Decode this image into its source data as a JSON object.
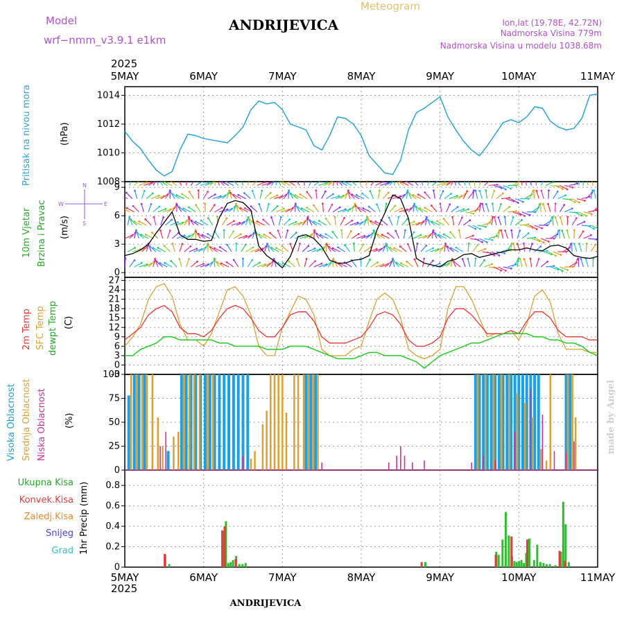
{
  "header": {
    "model_label": "Model",
    "model_name": "wrf−nmm_v3.9.1  e1km",
    "title": "ANDRIJEVICA",
    "meteogram": "Meteogram",
    "lonlat": "lon,lat (19.78E, 42.72N)",
    "elevation": "Nadmorska Visina 779m",
    "model_elevation": "Nadmorska Visina u modelu 1038.68m",
    "year_top": "2025",
    "year_bottom": "2025",
    "footer": "ANDRIJEVICA",
    "credit": "made by Angel"
  },
  "colors": {
    "pressure": "#2aa2de",
    "temp2m": "#ee3333",
    "sfc": "#dda030",
    "dew": "#22cc22",
    "high_cloud": "#18a0e8",
    "mid_cloud": "#dda030",
    "low_cloud": "#cc3399",
    "total_rain": "#2ebd2e",
    "convective": "#e83a3a",
    "freezing": "#ee8822",
    "snow": "#4444dd",
    "hail": "#33c0c0",
    "wind_legend": "#9955dd"
  },
  "chart_data": [
    {
      "type": "line",
      "panel": "pressure",
      "ylabel": "Pritisak na nivou mora",
      "unit": "(hPa)",
      "x_categories": [
        "5MAY",
        "6MAY",
        "7MAY",
        "8MAY",
        "9MAY",
        "10MAY",
        "11MAY"
      ],
      "yticks": [
        1008,
        1010,
        1012,
        1014
      ],
      "ylim": [
        1008,
        1014.6
      ],
      "grid": true,
      "x": [
        0,
        0.1,
        0.2,
        0.3,
        0.4,
        0.5,
        0.6,
        0.7,
        0.8,
        0.9,
        1.0,
        1.1,
        1.2,
        1.3,
        1.4,
        1.5,
        1.6,
        1.7,
        1.8,
        1.9,
        2.0,
        2.1,
        2.2,
        2.3,
        2.4,
        2.5,
        2.6,
        2.7,
        2.8,
        2.9,
        3.0,
        3.1,
        3.2,
        3.3,
        3.4,
        3.5,
        3.6,
        3.7,
        3.8,
        3.9,
        4.0,
        4.1,
        4.2,
        4.3,
        4.4,
        4.5,
        4.6,
        4.7,
        4.8,
        4.9,
        5.0,
        5.1,
        5.2,
        5.3,
        5.4,
        5.5,
        5.6,
        5.7,
        5.8,
        5.9,
        6.0
      ],
      "series": [
        {
          "values": [
            1011.5,
            1010.8,
            1010.3,
            1009.5,
            1008.8,
            1008.4,
            1008.7,
            1010.2,
            1011.3,
            1011.2,
            1011.0,
            1010.9,
            1010.8,
            1010.7,
            1011.2,
            1011.8,
            1013.0,
            1013.6,
            1013.4,
            1013.5,
            1013.0,
            1012.0,
            1011.8,
            1011.6,
            1010.5,
            1010.2,
            1011.2,
            1012.5,
            1012.4,
            1012.0,
            1011.2,
            1009.8,
            1009.2,
            1008.6,
            1008.5,
            1009.5,
            1011.6,
            1012.8,
            1013.1,
            1013.5,
            1013.9,
            1012.5,
            1011.6,
            1010.8,
            1010.2,
            1009.8,
            1010.5,
            1011.3,
            1012.1,
            1012.3,
            1012.1,
            1012.5,
            1013.2,
            1013.1,
            1012.2,
            1011.8,
            1011.6,
            1011.7,
            1012.4,
            1014.0,
            1014.1
          ]
        }
      ]
    },
    {
      "type": "line",
      "panel": "wind",
      "ylabel_1": "10m Vjetar",
      "ylabel_2": "Brzina i Pravac",
      "unit": "(m/s)",
      "direction_legend": [
        "N",
        "W",
        "E",
        "S"
      ],
      "yticks": [
        0,
        3,
        6,
        9
      ],
      "ylim": [
        -0.5,
        9.6
      ],
      "grid": true,
      "x": [
        0,
        0.1,
        0.2,
        0.3,
        0.4,
        0.5,
        0.6,
        0.7,
        0.8,
        0.9,
        1.0,
        1.1,
        1.2,
        1.3,
        1.4,
        1.5,
        1.6,
        1.7,
        1.8,
        1.9,
        2.0,
        2.1,
        2.2,
        2.3,
        2.4,
        2.5,
        2.6,
        2.7,
        2.8,
        2.9,
        3.0,
        3.1,
        3.2,
        3.3,
        3.4,
        3.5,
        3.6,
        3.7,
        3.8,
        3.9,
        4.0,
        4.1,
        4.2,
        4.3,
        4.4,
        4.5,
        4.6,
        4.7,
        4.8,
        4.9,
        5.0,
        5.1,
        5.2,
        5.3,
        5.4,
        5.5,
        5.6,
        5.7,
        5.8,
        5.9,
        6.0
      ],
      "series": [
        {
          "name": "speed",
          "values": [
            1.8,
            2.0,
            2.4,
            3.0,
            4.2,
            5.3,
            6.4,
            4.0,
            3.5,
            3.5,
            3.3,
            3.4,
            5.8,
            7.3,
            7.6,
            7.4,
            6.6,
            2.8,
            1.8,
            1.2,
            0.5,
            1.7,
            3.8,
            4.0,
            3.6,
            2.7,
            1.3,
            1.0,
            1.0,
            1.3,
            1.4,
            1.8,
            4.5,
            6.3,
            8.2,
            7.8,
            5.7,
            1.5,
            1.0,
            0.8,
            0.6,
            1.2,
            1.4,
            1.9,
            2.0,
            1.6,
            1.8,
            2.0,
            2.2,
            2.4,
            2.4,
            2.6,
            2.4,
            2.3,
            2.8,
            2.9,
            2.6,
            1.8,
            1.6,
            1.5,
            1.7
          ]
        }
      ]
    },
    {
      "type": "line",
      "panel": "temperature",
      "ylabels": [
        "2m Temp",
        "SFC Temp",
        "dewpt Temp"
      ],
      "unit": "(C)",
      "yticks": [
        -3,
        0,
        3,
        6,
        9,
        12,
        15,
        18,
        21,
        24,
        27
      ],
      "ylim": [
        -3,
        28
      ],
      "grid": true,
      "x": [
        0,
        0.1,
        0.2,
        0.3,
        0.4,
        0.5,
        0.6,
        0.7,
        0.8,
        0.9,
        1.0,
        1.1,
        1.2,
        1.3,
        1.4,
        1.5,
        1.6,
        1.7,
        1.8,
        1.9,
        2.0,
        2.1,
        2.2,
        2.3,
        2.4,
        2.5,
        2.6,
        2.7,
        2.8,
        2.9,
        3.0,
        3.1,
        3.2,
        3.3,
        3.4,
        3.5,
        3.6,
        3.7,
        3.8,
        3.9,
        4.0,
        4.1,
        4.2,
        4.3,
        4.4,
        4.5,
        4.6,
        4.7,
        4.8,
        4.9,
        5.0,
        5.1,
        5.2,
        5.3,
        5.4,
        5.5,
        5.6,
        5.7,
        5.8,
        5.9,
        6.0
      ],
      "series": [
        {
          "name": "2m Temp",
          "values": [
            8,
            10,
            12,
            16,
            18,
            19,
            17,
            12,
            10,
            10,
            9,
            11,
            15,
            18,
            19,
            18,
            15,
            11,
            9,
            9,
            12,
            16,
            17,
            17,
            14,
            9,
            7,
            7,
            7,
            8,
            9,
            12,
            16,
            17,
            16,
            13,
            8,
            6,
            6,
            7,
            9,
            15,
            18,
            18,
            16,
            13,
            10,
            10,
            10,
            11,
            10,
            14,
            17,
            17,
            15,
            11,
            9,
            9,
            9,
            8,
            8
          ]
        },
        {
          "name": "SFC Temp",
          "values": [
            6,
            9,
            13,
            21,
            25,
            26,
            22,
            13,
            8,
            8,
            6,
            10,
            17,
            24,
            25,
            22,
            16,
            6,
            3,
            3,
            12,
            17,
            22,
            21,
            16,
            5,
            3,
            3,
            3,
            5,
            6,
            14,
            21,
            23,
            21,
            15,
            5,
            3,
            2,
            3,
            5,
            18,
            25,
            25,
            21,
            15,
            9,
            10,
            10,
            11,
            8,
            13,
            22,
            24,
            20,
            10,
            5,
            5,
            5,
            4,
            4
          ]
        },
        {
          "name": "dewpt Temp",
          "values": [
            3,
            3,
            5,
            6,
            7,
            9,
            9,
            8,
            8,
            8,
            8,
            8,
            7,
            7,
            6,
            6,
            6,
            6,
            5,
            5,
            5,
            6,
            6,
            6,
            5,
            4,
            3,
            2,
            2,
            2,
            3,
            4,
            4,
            3,
            3,
            3,
            2,
            1,
            -1,
            1,
            3,
            4,
            5,
            6,
            7,
            7,
            8,
            9,
            10,
            10,
            10,
            10,
            9,
            9,
            8,
            8,
            7,
            7,
            6,
            4,
            3
          ]
        }
      ]
    },
    {
      "type": "bar",
      "panel": "clouds",
      "ylabels": [
        "Visoka Oblacnost",
        "Srednja Oblacnost",
        "Niska Oblacnost"
      ],
      "unit": "(%)",
      "yticks": [
        0,
        25,
        50,
        75,
        100
      ],
      "ylim": [
        0,
        100
      ],
      "grid": true,
      "series": [
        {
          "name": "Visoka Oblacnost",
          "x": [
            0.05,
            0.12,
            0.18,
            0.25,
            0.55,
            0.72,
            0.78,
            0.84,
            0.9,
            0.96,
            1.02,
            1.08,
            1.14,
            1.2,
            1.26,
            1.32,
            1.38,
            1.44,
            1.5,
            1.56,
            2.3,
            2.36,
            2.42,
            4.45,
            4.5,
            4.55,
            4.6,
            4.65,
            4.7,
            4.75,
            4.8,
            4.85,
            4.9,
            4.95,
            5.0,
            5.05,
            5.1,
            5.15,
            5.2,
            5.25,
            5.6,
            5.65
          ],
          "values": [
            78,
            100,
            100,
            100,
            20,
            100,
            100,
            100,
            100,
            100,
            100,
            100,
            100,
            100,
            100,
            100,
            100,
            100,
            100,
            100,
            100,
            100,
            100,
            100,
            100,
            100,
            100,
            100,
            100,
            100,
            100,
            100,
            100,
            100,
            100,
            100,
            100,
            100,
            100,
            100,
            100,
            100
          ]
        },
        {
          "name": "Srednja Oblacnost",
          "x": [
            0.08,
            0.15,
            0.22,
            0.28,
            0.35,
            0.42,
            0.48,
            0.62,
            0.68,
            0.75,
            0.82,
            0.88,
            0.95,
            1.05,
            1.12,
            1.6,
            1.65,
            1.75,
            1.8,
            1.85,
            1.9,
            1.95,
            2.0,
            2.05,
            2.15,
            2.2,
            2.27,
            2.33,
            2.39,
            2.45,
            4.48,
            4.58,
            4.68,
            4.78,
            4.88,
            4.98,
            5.08,
            5.18,
            5.28,
            5.35,
            5.4,
            5.62,
            5.68,
            5.72
          ],
          "values": [
            100,
            100,
            100,
            100,
            100,
            55,
            25,
            35,
            40,
            100,
            100,
            100,
            100,
            100,
            100,
            12,
            20,
            48,
            62,
            100,
            100,
            100,
            100,
            60,
            100,
            100,
            100,
            100,
            100,
            100,
            100,
            100,
            100,
            100,
            100,
            80,
            70,
            55,
            22,
            10,
            100,
            100,
            100,
            55
          ]
        },
        {
          "name": "Niska Oblacnost",
          "x": [
            0.45,
            0.52,
            1.5,
            2.5,
            3.35,
            3.45,
            3.5,
            3.55,
            3.65,
            3.8,
            4.4,
            4.55,
            4.7,
            4.95,
            5.15,
            5.3,
            5.45,
            5.6,
            5.7
          ],
          "values": [
            25,
            40,
            15,
            8,
            8,
            15,
            25,
            15,
            8,
            10,
            8,
            15,
            10,
            40,
            85,
            58,
            20,
            18,
            30
          ]
        }
      ]
    },
    {
      "type": "bar",
      "panel": "precipitation",
      "ylabels": [
        "Ukupna Kisa",
        "Konvek.Kisa",
        "Zaledj.Kisa",
        "Snijeg",
        "Grad"
      ],
      "unit": "1hr Precip (mm)",
      "yticks": [
        0,
        0.2,
        0.4,
        0.6,
        0.8
      ],
      "ylim": [
        0,
        0.95
      ],
      "grid": true,
      "series": [
        {
          "name": "Ukupna Kisa",
          "x": [
            0.5,
            0.55,
            1.24,
            1.27,
            1.3,
            1.33,
            1.36,
            1.4,
            1.44,
            1.48,
            1.52,
            3.8,
            4.7,
            4.73,
            4.78,
            4.82,
            4.86,
            4.9,
            4.93,
            4.96,
            4.99,
            5.02,
            5.05,
            5.08,
            5.12,
            5.18,
            5.22,
            5.26,
            5.3,
            5.34,
            5.38,
            5.45,
            5.52,
            5.55,
            5.58,
            5.62
          ],
          "values": [
            0.12,
            0.03,
            0.35,
            0.45,
            0.04,
            0.05,
            0.07,
            0.11,
            0.03,
            0.03,
            0.04,
            0.05,
            0.15,
            0.12,
            0.27,
            0.54,
            0.31,
            0.11,
            0.06,
            0.05,
            0.06,
            0.07,
            0.04,
            0.14,
            0.28,
            0.07,
            0.22,
            0.05,
            0.04,
            0.03,
            0.03,
            0.02,
            0.15,
            0.64,
            0.42,
            0.05
          ]
        },
        {
          "name": "Konvek.Kisa",
          "x": [
            0.52,
            1.25,
            1.28,
            1.42,
            3.78,
            4.72,
            4.92,
            5.12,
            5.53,
            5.6
          ],
          "values": [
            0.13,
            0.36,
            0.4,
            0.08,
            0.05,
            0.12,
            0.3,
            0.27,
            0.16,
            0.06
          ]
        }
      ]
    }
  ],
  "x_axis": {
    "labels": [
      "5MAY",
      "6MAY",
      "7MAY",
      "8MAY",
      "9MAY",
      "10MAY",
      "11MAY"
    ]
  }
}
